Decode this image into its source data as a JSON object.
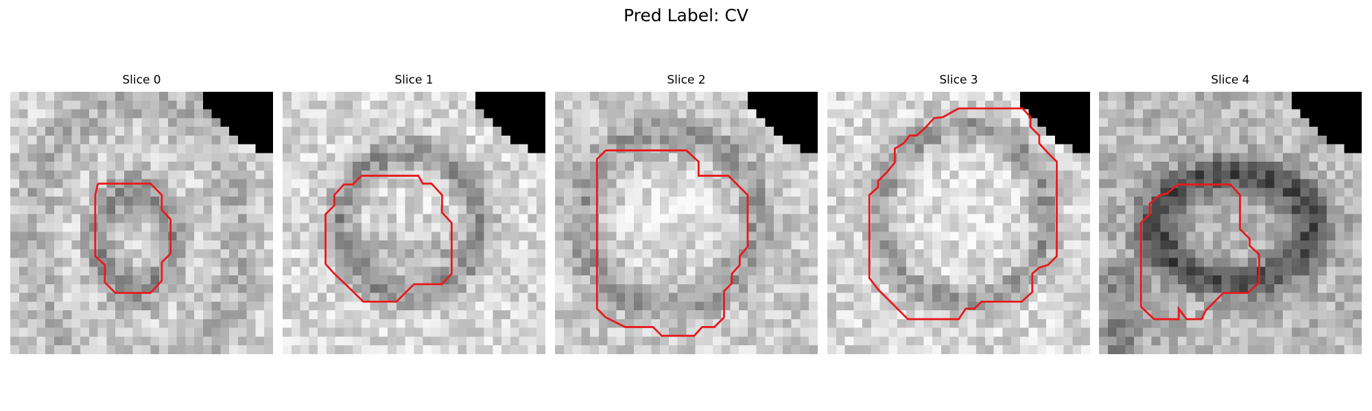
{
  "figure": {
    "title": "Pred Label: CV"
  },
  "panels": [
    {
      "title": "Slice 0",
      "pattern": "ring-small",
      "contour_color": "#e8191c"
    },
    {
      "title": "Slice 1",
      "pattern": "ring-medium",
      "contour_color": "#e8191c"
    },
    {
      "title": "Slice 2",
      "pattern": "bright-center",
      "contour_color": "#e8191c"
    },
    {
      "title": "Slice 3",
      "pattern": "large-ring",
      "contour_color": "#e8191c"
    },
    {
      "title": "Slice 4",
      "pattern": "dark-ring",
      "contour_color": "#e8191c"
    }
  ]
}
